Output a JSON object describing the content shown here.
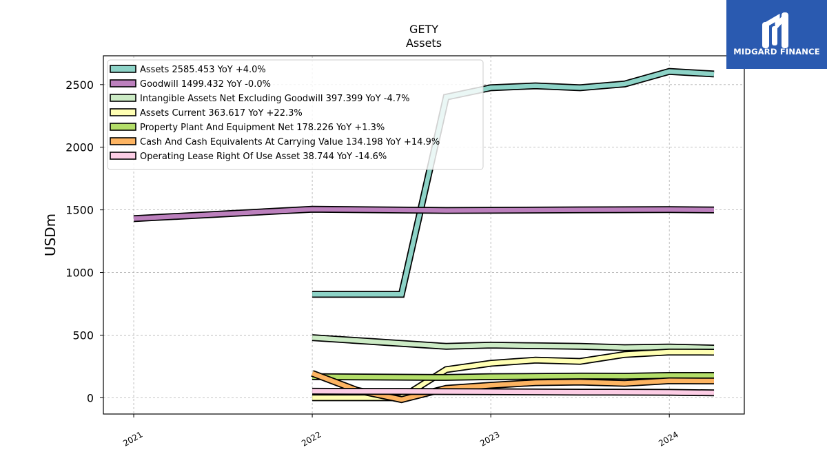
{
  "chart_data": {
    "type": "line",
    "title": "GETY",
    "subtitle": "Assets",
    "ylabel": "USDm",
    "xlabel": "",
    "ylim": [
      -130,
      2730
    ],
    "xlim": [
      2020.83,
      2024.42
    ],
    "yticks": [
      0,
      500,
      1000,
      1500,
      2000,
      2500
    ],
    "xticks": [
      {
        "value": 2021,
        "label": "2021"
      },
      {
        "value": 2022,
        "label": "2022"
      },
      {
        "value": 2023,
        "label": "2023"
      },
      {
        "value": 2024,
        "label": "2024"
      }
    ],
    "grid": true,
    "legend_position": "top-left",
    "series": [
      {
        "name": "Assets",
        "legend": "Assets  2585.453 YoY +4.0%",
        "color": "#8dd3c7",
        "x": [
          2022.0,
          2022.5,
          2022.75,
          2023.0,
          2023.25,
          2023.5,
          2023.75,
          2024.0,
          2024.25
        ],
        "y": [
          826,
          826,
          2400,
          2475,
          2490,
          2475,
          2505,
          2605,
          2585
        ]
      },
      {
        "name": "Goodwill",
        "legend": "Goodwill  1499.432 YoY -0.0%",
        "color": "#bc80bd",
        "x": [
          2021.0,
          2022.0,
          2022.75,
          2023.0,
          2023.5,
          2024.0,
          2024.25
        ],
        "y": [
          1430,
          1505,
          1495,
          1497,
          1500,
          1502,
          1499
        ]
      },
      {
        "name": "Intangible Assets Net Excluding Goodwill",
        "legend": "Intangible Assets Net Excluding Goodwill  397.399 YoY -4.7%",
        "color": "#ccebc5",
        "x": [
          2022.0,
          2022.75,
          2023.0,
          2023.25,
          2023.5,
          2023.75,
          2024.0,
          2024.25
        ],
        "y": [
          480,
          410,
          420,
          415,
          410,
          400,
          405,
          397
        ]
      },
      {
        "name": "Assets Current",
        "legend": "Assets Current  363.617 YoY +22.3%",
        "color": "#ffffb3",
        "x": [
          2022.0,
          2022.5,
          2022.75,
          2023.0,
          2023.25,
          2023.5,
          2023.75,
          2024.0,
          2024.25
        ],
        "y": [
          0,
          0,
          225,
          275,
          300,
          290,
          345,
          365,
          364
        ]
      },
      {
        "name": "Property Plant And Equipment Net",
        "legend": "Property Plant And Equipment Net  178.226 YoY +1.3%",
        "color": "#b3de69",
        "x": [
          2022.0,
          2022.75,
          2023.0,
          2023.5,
          2023.75,
          2024.0,
          2024.25
        ],
        "y": [
          168,
          162,
          168,
          173,
          172,
          178,
          178
        ]
      },
      {
        "name": "Cash And Cash Equivalents At Carrying Value",
        "legend": "Cash And Cash Equivalents At Carrying Value  134.198 YoY +14.9%",
        "color": "#fdb462",
        "x": [
          2022.0,
          2022.25,
          2022.5,
          2022.75,
          2023.0,
          2023.25,
          2023.5,
          2023.75,
          2024.0,
          2024.25
        ],
        "y": [
          195,
          60,
          -15,
          75,
          100,
          120,
          125,
          115,
          135,
          134
        ]
      },
      {
        "name": "Operating Lease Right Of Use Asset",
        "legend": "Operating Lease Right Of Use Asset  38.744 YoY -14.6%",
        "color": "#fccde5",
        "x": [
          2022.0,
          2022.5,
          2023.0,
          2023.5,
          2024.0,
          2024.25
        ],
        "y": [
          52,
          50,
          48,
          45,
          43,
          39
        ]
      }
    ]
  },
  "logo": {
    "text": "MIDGARD FINANCE"
  }
}
